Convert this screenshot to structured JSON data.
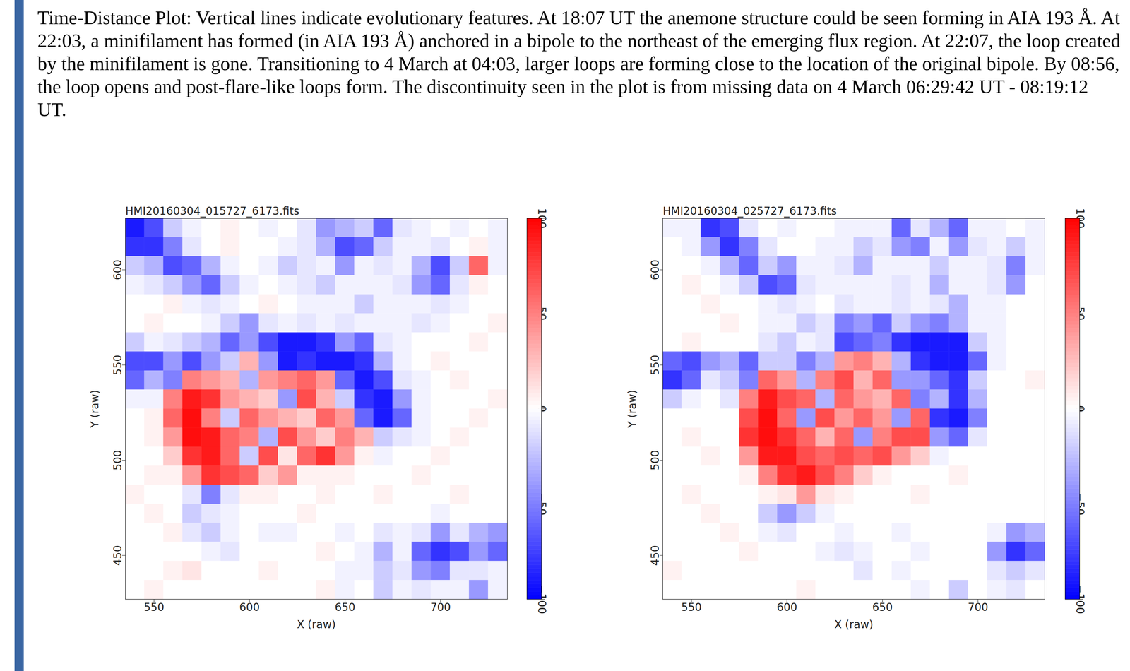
{
  "caption": "Time-Distance Plot: Vertical lines indicate evolutionary features.  At 18:07 UT the anemone structure could be seen forming in AIA 193 Å.  At 22:03, a minifilament has formed (in AIA 193 Å) anchored in a bipole to the northeast of the emerging flux region.  At 22:07, the loop created by the minifilament is gone.  Transitioning to 4 March at 04:03, larger loops are forming close to the location of the original bipole.  By 08:56, the loop opens and post-flare-like loops form.  The discontinuity seen in the plot is from missing data on 4 March 06:29:42 UT - 08:19:12 UT.",
  "chart_data": [
    {
      "type": "heatmap",
      "title": "HMI20160304_015727_6173.fits",
      "x_label": "X (raw)",
      "y_label": "Y (raw)",
      "xlim": [
        535,
        735
      ],
      "ylim": [
        427,
        627
      ],
      "xticks": [
        550,
        600,
        650,
        700
      ],
      "yticks": [
        450,
        500,
        550,
        600
      ],
      "x_edges": [
        535,
        545,
        555,
        565,
        575,
        585,
        595,
        605,
        615,
        625,
        635,
        645,
        655,
        665,
        675,
        685,
        695,
        705,
        715,
        725,
        735
      ],
      "y_edges": [
        627,
        617,
        607,
        597,
        587,
        577,
        567,
        557,
        547,
        537,
        527,
        517,
        507,
        497,
        487,
        477,
        467,
        457,
        447,
        437,
        427
      ],
      "cells": [
        [
          -90,
          -70,
          -20,
          -5,
          0,
          5,
          0,
          -5,
          0,
          -10,
          -40,
          -30,
          -20,
          -60,
          -10,
          -5,
          0,
          -5,
          0,
          -5
        ],
        [
          -80,
          -80,
          -50,
          -10,
          0,
          5,
          0,
          0,
          -5,
          -10,
          -30,
          -70,
          -60,
          -20,
          -5,
          -5,
          -10,
          0,
          5,
          -5
        ],
        [
          -20,
          -30,
          -70,
          -60,
          -30,
          -5,
          0,
          -5,
          -20,
          -10,
          -5,
          -40,
          -5,
          -10,
          -5,
          -30,
          -70,
          -20,
          60,
          -5
        ],
        [
          -5,
          -10,
          -20,
          -40,
          -60,
          -20,
          -5,
          0,
          -5,
          -10,
          -20,
          -5,
          -5,
          -5,
          -10,
          -40,
          -60,
          -10,
          5,
          0
        ],
        [
          0,
          0,
          5,
          -5,
          -10,
          -5,
          0,
          5,
          0,
          -5,
          -5,
          -5,
          -20,
          -5,
          -5,
          -5,
          -10,
          -5,
          0,
          0
        ],
        [
          0,
          5,
          0,
          0,
          -5,
          -20,
          -40,
          -10,
          -5,
          -10,
          -5,
          -10,
          -5,
          -5,
          -5,
          -10,
          -5,
          0,
          0,
          5
        ],
        [
          -20,
          -5,
          -10,
          -20,
          -30,
          -60,
          -40,
          -70,
          -90,
          -90,
          -80,
          -40,
          -60,
          -10,
          -5,
          0,
          0,
          0,
          5,
          0
        ],
        [
          -70,
          -70,
          -40,
          -70,
          -40,
          -20,
          30,
          -40,
          -90,
          -80,
          -90,
          -90,
          -80,
          -30,
          -5,
          0,
          5,
          0,
          0,
          0
        ],
        [
          -60,
          -30,
          -50,
          50,
          40,
          30,
          -30,
          40,
          50,
          60,
          40,
          -60,
          -90,
          -70,
          -10,
          -5,
          0,
          5,
          0,
          0
        ],
        [
          -5,
          -5,
          50,
          90,
          80,
          40,
          30,
          20,
          -40,
          70,
          30,
          -20,
          -80,
          -90,
          -40,
          -5,
          0,
          0,
          0,
          5
        ],
        [
          0,
          5,
          60,
          95,
          50,
          -20,
          60,
          40,
          30,
          20,
          60,
          40,
          -60,
          -90,
          -60,
          -5,
          0,
          0,
          5,
          0
        ],
        [
          0,
          5,
          40,
          95,
          90,
          60,
          50,
          -30,
          70,
          40,
          20,
          50,
          30,
          -20,
          -10,
          -5,
          0,
          5,
          0,
          0
        ],
        [
          0,
          0,
          20,
          80,
          90,
          60,
          -20,
          70,
          10,
          60,
          80,
          40,
          5,
          -5,
          0,
          0,
          5,
          0,
          0,
          0
        ],
        [
          0,
          5,
          5,
          40,
          80,
          70,
          60,
          20,
          40,
          5,
          5,
          5,
          0,
          0,
          0,
          5,
          0,
          0,
          0,
          0
        ],
        [
          5,
          0,
          0,
          -10,
          -50,
          -10,
          5,
          5,
          0,
          0,
          5,
          0,
          0,
          5,
          0,
          0,
          0,
          5,
          0,
          0
        ],
        [
          0,
          5,
          0,
          -20,
          -10,
          -5,
          0,
          0,
          0,
          5,
          0,
          0,
          0,
          0,
          0,
          0,
          -5,
          0,
          0,
          0
        ],
        [
          0,
          0,
          5,
          -10,
          -20,
          -5,
          0,
          -5,
          -5,
          0,
          0,
          -5,
          0,
          -10,
          -5,
          -10,
          -40,
          -10,
          -30,
          -40
        ],
        [
          0,
          0,
          0,
          0,
          -5,
          -10,
          0,
          0,
          0,
          0,
          5,
          0,
          -5,
          -30,
          -5,
          -60,
          -80,
          -70,
          -40,
          -60
        ],
        [
          0,
          0,
          5,
          10,
          0,
          0,
          0,
          5,
          0,
          0,
          0,
          -5,
          -5,
          -20,
          -10,
          -40,
          -50,
          -10,
          -10,
          -5
        ],
        [
          0,
          5,
          0,
          0,
          0,
          0,
          0,
          0,
          0,
          0,
          5,
          -5,
          0,
          -20,
          -5,
          -10,
          -5,
          -5,
          -40,
          -5
        ]
      ],
      "colorbar": {
        "range": [
          -100,
          100
        ],
        "ticks": [
          -100,
          -50,
          0,
          50,
          100
        ],
        "colors": [
          "#0000ff",
          "#ffffff",
          "#ff0000"
        ]
      }
    },
    {
      "type": "heatmap",
      "title": "HMI20160304_025727_6173.fits",
      "x_label": "X (raw)",
      "y_label": "Y (raw)",
      "xlim": [
        535,
        735
      ],
      "ylim": [
        427,
        627
      ],
      "xticks": [
        550,
        600,
        650,
        700
      ],
      "yticks": [
        450,
        500,
        550,
        600
      ],
      "x_edges": [
        535,
        545,
        555,
        565,
        575,
        585,
        595,
        605,
        615,
        625,
        635,
        645,
        655,
        665,
        675,
        685,
        695,
        705,
        715,
        725,
        735
      ],
      "y_edges": [
        627,
        617,
        607,
        597,
        587,
        577,
        567,
        557,
        547,
        537,
        527,
        517,
        507,
        497,
        487,
        477,
        467,
        457,
        447,
        437,
        427
      ],
      "cells": [
        [
          -5,
          -5,
          -80,
          -70,
          -10,
          0,
          -5,
          0,
          0,
          -5,
          -5,
          -5,
          -60,
          -10,
          -30,
          -60,
          -5,
          -5,
          0,
          -5
        ],
        [
          0,
          -5,
          -40,
          -80,
          -50,
          -10,
          0,
          0,
          -5,
          -5,
          -20,
          -10,
          -40,
          -50,
          -5,
          -40,
          -10,
          -5,
          -20,
          -5
        ],
        [
          0,
          0,
          -5,
          -30,
          -60,
          -20,
          -40,
          -5,
          -5,
          -10,
          -30,
          -5,
          -5,
          -5,
          -20,
          -5,
          -5,
          -10,
          -50,
          -5
        ],
        [
          0,
          5,
          0,
          -5,
          -20,
          -70,
          -60,
          -10,
          -5,
          -5,
          -5,
          -5,
          -10,
          -5,
          -30,
          -5,
          -5,
          -10,
          -40,
          0
        ],
        [
          0,
          0,
          5,
          0,
          0,
          -5,
          -10,
          -5,
          0,
          -10,
          -5,
          -5,
          -10,
          -5,
          -10,
          -30,
          -5,
          -5,
          0,
          0
        ],
        [
          0,
          0,
          0,
          5,
          0,
          -5,
          -5,
          -20,
          -10,
          -50,
          -40,
          -60,
          -20,
          -40,
          -50,
          -30,
          -5,
          -5,
          0,
          0
        ],
        [
          0,
          5,
          0,
          0,
          0,
          -10,
          -20,
          -5,
          -10,
          -70,
          -60,
          -50,
          -80,
          -90,
          -90,
          -90,
          -20,
          -5,
          0,
          0
        ],
        [
          -60,
          -70,
          -40,
          -30,
          -60,
          -20,
          -20,
          -50,
          -30,
          40,
          50,
          30,
          -30,
          -80,
          -90,
          -90,
          -60,
          -5,
          0,
          0
        ],
        [
          -80,
          -60,
          -10,
          -20,
          -50,
          60,
          40,
          -30,
          50,
          70,
          30,
          60,
          -40,
          -40,
          -60,
          -80,
          -20,
          0,
          0,
          5
        ],
        [
          -20,
          -5,
          0,
          -10,
          50,
          90,
          70,
          60,
          -30,
          60,
          40,
          30,
          60,
          -50,
          -30,
          -80,
          -30,
          0,
          0,
          0
        ],
        [
          0,
          0,
          0,
          0,
          70,
          95,
          60,
          -40,
          70,
          40,
          60,
          40,
          -40,
          60,
          -80,
          -90,
          -50,
          0,
          0,
          0
        ],
        [
          0,
          5,
          0,
          0,
          80,
          95,
          80,
          60,
          30,
          60,
          -40,
          50,
          70,
          70,
          -40,
          -60,
          -10,
          0,
          0,
          0
        ],
        [
          0,
          0,
          5,
          0,
          40,
          90,
          90,
          70,
          60,
          70,
          60,
          70,
          40,
          20,
          -5,
          0,
          0,
          0,
          0,
          0
        ],
        [
          0,
          0,
          0,
          0,
          5,
          50,
          80,
          90,
          70,
          50,
          20,
          5,
          0,
          0,
          0,
          5,
          0,
          0,
          0,
          0
        ],
        [
          0,
          5,
          0,
          0,
          0,
          5,
          10,
          40,
          10,
          5,
          0,
          0,
          0,
          5,
          0,
          0,
          0,
          0,
          0,
          0
        ],
        [
          0,
          0,
          5,
          0,
          0,
          -20,
          -40,
          -20,
          -5,
          0,
          0,
          0,
          0,
          0,
          0,
          0,
          0,
          0,
          0,
          0
        ],
        [
          0,
          0,
          0,
          5,
          0,
          -5,
          -10,
          0,
          0,
          -5,
          0,
          0,
          -5,
          0,
          0,
          0,
          0,
          -5,
          -40,
          -30
        ],
        [
          0,
          0,
          0,
          0,
          5,
          0,
          0,
          0,
          -5,
          -10,
          -5,
          0,
          0,
          -5,
          0,
          0,
          0,
          -40,
          -80,
          -60
        ],
        [
          5,
          0,
          0,
          0,
          0,
          0,
          0,
          0,
          0,
          0,
          -10,
          0,
          -5,
          0,
          0,
          0,
          0,
          -10,
          -20,
          -10
        ],
        [
          0,
          0,
          0,
          0,
          0,
          0,
          0,
          5,
          0,
          0,
          0,
          0,
          0,
          -5,
          0,
          -20,
          0,
          -5,
          -10,
          0
        ]
      ],
      "colorbar": {
        "range": [
          -100,
          100
        ],
        "ticks": [
          -100,
          -50,
          0,
          50,
          100
        ],
        "colors": [
          "#0000ff",
          "#ffffff",
          "#ff0000"
        ]
      }
    }
  ]
}
